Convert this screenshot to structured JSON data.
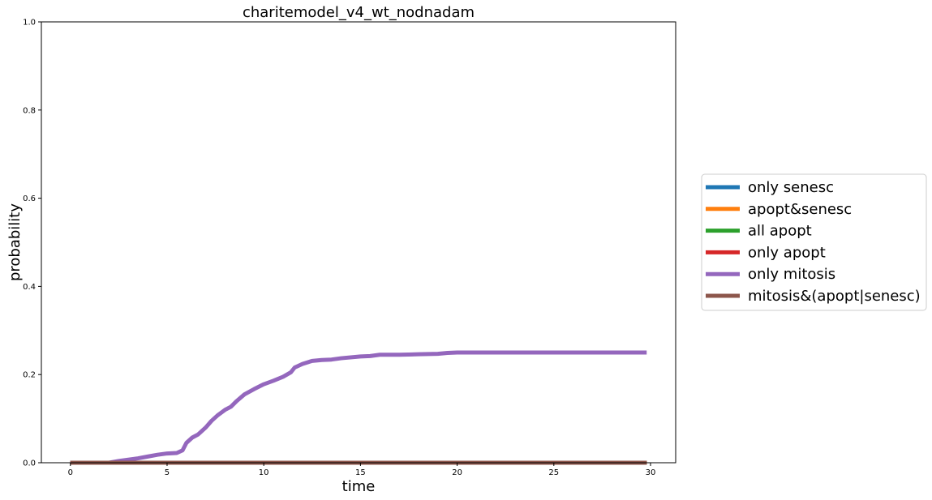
{
  "chart_data": {
    "type": "line",
    "title": "charitemodel_v4_wt_nodnadam",
    "xlabel": "time",
    "ylabel": "probability",
    "xlim": [
      -1.5,
      31.3
    ],
    "ylim": [
      0,
      1
    ],
    "xticks": [
      0,
      5,
      10,
      15,
      20,
      25,
      30
    ],
    "xtick_labels": [
      "0",
      "5",
      "10",
      "15",
      "20",
      "25",
      "30"
    ],
    "yticks": [
      0,
      0.2,
      0.4,
      0.6,
      0.8,
      1.0
    ],
    "ytick_labels": [
      "0.0",
      "0.2",
      "0.4",
      "0.6",
      "0.8",
      "1.0"
    ],
    "grid": false,
    "legend_position": "right-outside",
    "series": [
      {
        "name": "only senesc",
        "color": "#1f77b4",
        "x": [
          0,
          29.8
        ],
        "y": [
          0,
          0
        ]
      },
      {
        "name": "apopt&senesc",
        "color": "#ff7f0e",
        "x": [
          0,
          29.8
        ],
        "y": [
          0,
          0
        ]
      },
      {
        "name": "all apopt",
        "color": "#2ca02c",
        "x": [
          0,
          29.8
        ],
        "y": [
          0,
          0
        ]
      },
      {
        "name": "only apopt",
        "color": "#d62728",
        "x": [
          0,
          29.8
        ],
        "y": [
          0,
          0
        ]
      },
      {
        "name": "only mitosis",
        "color": "#9467bd",
        "x": [
          0,
          1.5,
          2.0,
          2.5,
          3.0,
          3.5,
          4.0,
          4.5,
          5.0,
          5.5,
          5.8,
          6.0,
          6.3,
          6.6,
          7.0,
          7.3,
          7.6,
          8.0,
          8.3,
          8.6,
          9.0,
          9.5,
          10.0,
          10.5,
          11.0,
          11.4,
          11.6,
          12.0,
          12.5,
          13.0,
          13.5,
          14.0,
          15.0,
          15.5,
          16.0,
          17.0,
          18.0,
          19.0,
          19.5,
          20.0,
          20.5,
          25.0,
          29.8
        ],
        "y": [
          0,
          0,
          0,
          0.004,
          0.007,
          0.01,
          0.014,
          0.018,
          0.021,
          0.022,
          0.028,
          0.045,
          0.057,
          0.064,
          0.08,
          0.095,
          0.107,
          0.12,
          0.127,
          0.14,
          0.155,
          0.167,
          0.178,
          0.186,
          0.195,
          0.205,
          0.216,
          0.224,
          0.231,
          0.233,
          0.234,
          0.237,
          0.241,
          0.242,
          0.245,
          0.245,
          0.246,
          0.247,
          0.249,
          0.25,
          0.25,
          0.25,
          0.25
        ]
      },
      {
        "name": "mitosis&(apopt|senesc)",
        "color": "#8c564b",
        "x": [
          0,
          29.8
        ],
        "y": [
          0,
          0
        ]
      }
    ]
  }
}
